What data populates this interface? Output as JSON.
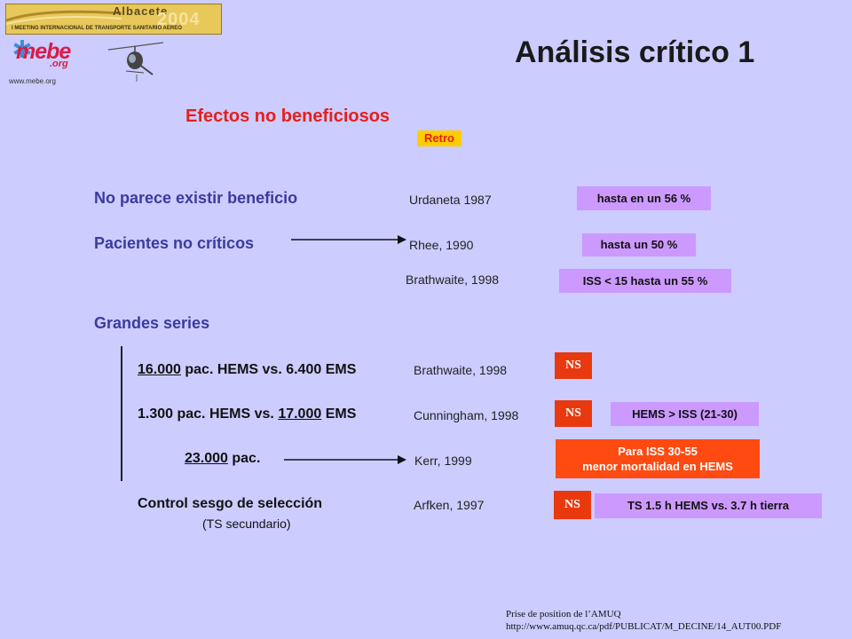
{
  "banner": {
    "city": "Albacete",
    "year": "2004",
    "meeting": "I MEETING INTERNACIONAL DE TRANSPORTE SANITARIO AEREO"
  },
  "logo": {
    "brand": "mebe",
    "org": ".org",
    "url": "www.mebe.org"
  },
  "title": "Análisis crítico 1",
  "subtitle": "Efectos no beneficiosos",
  "retro_tag": "Retro",
  "rows": {
    "no_beneficio": {
      "label": "No parece existir beneficio",
      "ref": "Urdaneta  1987",
      "badge": "hasta en un 56 %"
    },
    "no_criticos": {
      "label": "Pacientes no críticos",
      "ref": "Rhee, 1990",
      "badge": "hasta un 50 %"
    },
    "brathwaite": {
      "ref": "Brathwaite, 1998",
      "badge": "ISS < 15 hasta un 55 %"
    }
  },
  "series_heading": "Grandes series",
  "series": {
    "s1": {
      "num": "16.000",
      "text": " pac. HEMS vs. 6.400 EMS",
      "ref": "Brathwaite, 1998",
      "ns": "NS"
    },
    "s2": {
      "pre": "1.300 pac. HEMS vs. ",
      "num": "17.000",
      "post": " EMS",
      "ref": "Cunningham, 1998",
      "ns": "NS",
      "badge": "HEMS > ISS (21-30)"
    },
    "s3": {
      "num": "23.000",
      "post": " pac.",
      "ref": "Kerr, 1999",
      "badge_line1": "Para ISS 30-55",
      "badge_line2": "menor mortalidad en HEMS"
    },
    "s4": {
      "label": "Control sesgo de selección",
      "sub": "(TS secundario)",
      "ref": "Arfken, 1997",
      "ns": "NS",
      "badge": "TS 1.5 h HEMS  vs.  3.7 h tierra"
    }
  },
  "footer": {
    "line1": "Prise  de position de l’AMUQ",
    "line2": "http://www.amuq.qc.ca/pdf/PUBLICAT/M_DECINE/14_AUT00.PDF"
  }
}
